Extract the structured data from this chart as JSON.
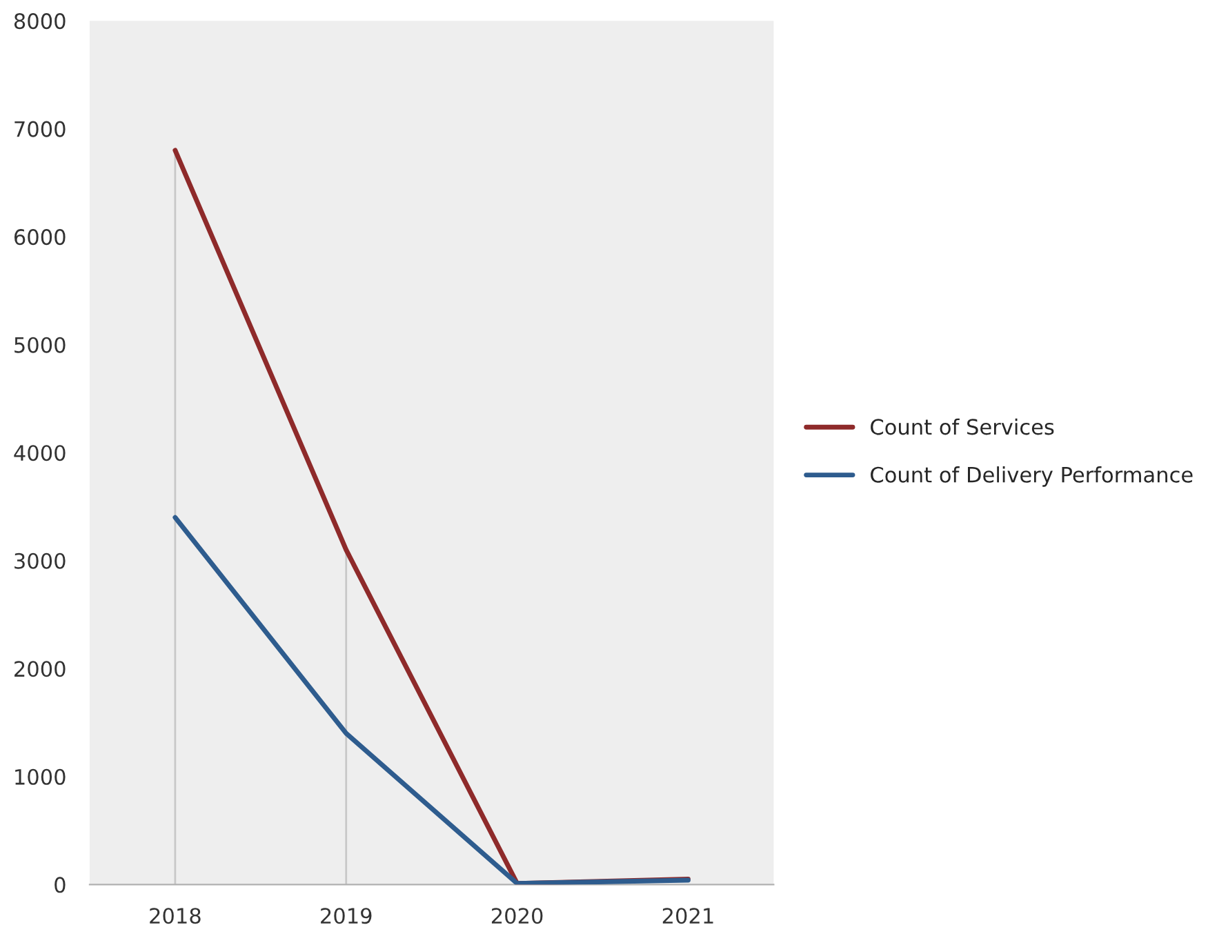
{
  "chart_data": {
    "type": "line",
    "categories": [
      "2018",
      "2019",
      "2020",
      "2021"
    ],
    "series": [
      {
        "name": "Count of Services",
        "color": "#8e2a2a",
        "values": [
          6800,
          3100,
          10,
          50
        ]
      },
      {
        "name": "Count of Delivery Performance",
        "color": "#2e5c8e",
        "values": [
          3400,
          1400,
          10,
          40
        ]
      }
    ],
    "ylim": [
      0,
      8000
    ],
    "yticks": [
      0,
      1000,
      2000,
      3000,
      4000,
      5000,
      6000,
      7000,
      8000
    ],
    "ref_lines": [
      {
        "axis": "x",
        "value": "2018",
        "color": "#c8c8c8"
      },
      {
        "axis": "x",
        "value": "2019",
        "color": "#c8c8c8"
      }
    ],
    "grid": false,
    "legend": "right",
    "marker": "none",
    "line_style": "solid"
  }
}
